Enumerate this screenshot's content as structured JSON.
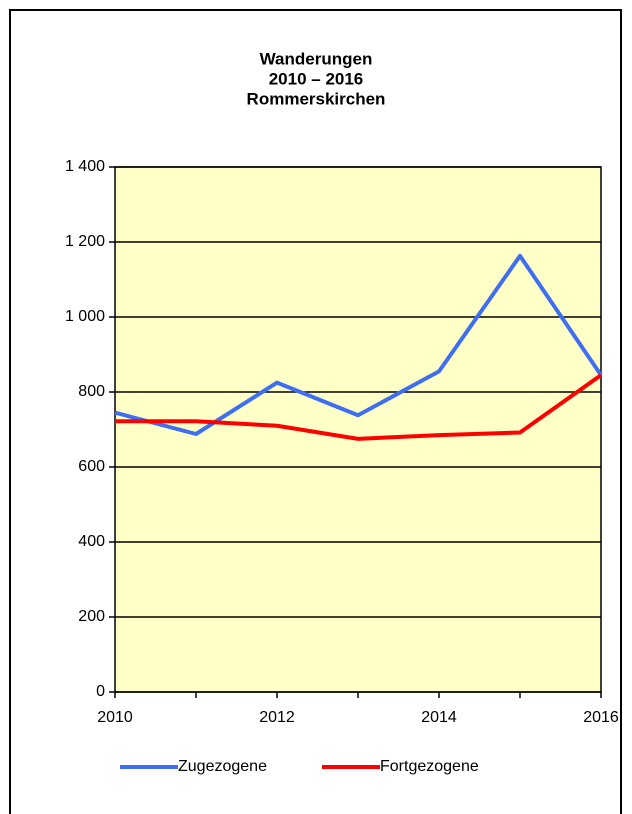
{
  "chart_data": {
    "type": "line",
    "title": [
      "Wanderungen",
      "2010 – 2016",
      "Rommerskirchen"
    ],
    "x": [
      2010,
      2011,
      2012,
      2013,
      2014,
      2015,
      2016
    ],
    "series": [
      {
        "name": "Zugezogene",
        "color": "#3f6ff0",
        "values": [
          745,
          688,
          825,
          738,
          855,
          1163,
          845
        ]
      },
      {
        "name": "Fortgezogene",
        "color": "#ff0000",
        "values": [
          722,
          722,
          710,
          675,
          685,
          692,
          845
        ]
      }
    ],
    "xlim": [
      2010,
      2016
    ],
    "xticks": [
      2010,
      2012,
      2014,
      2016
    ],
    "ylim": [
      0,
      1400
    ],
    "yticks": [
      0,
      200,
      400,
      600,
      800,
      {
        "value": 1000,
        "label": "1 000"
      },
      {
        "value": 1200,
        "label": "1 200"
      },
      {
        "value": 1400,
        "label": "1 400"
      }
    ],
    "grid": true,
    "legend": "bottom",
    "plot_background": "#ffffc8"
  }
}
